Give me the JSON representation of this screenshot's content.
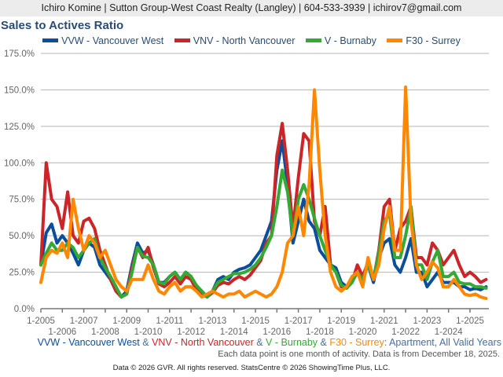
{
  "header": {
    "text": "Ichiro Komine | Sutton Group-West Coast Realty (Langley) | 604-533-3939 | ichirov7@gmail.com"
  },
  "caption": {
    "s1": "VVW - Vancouver West",
    "amp1": " & ",
    "s2": "VNV - North Vancouver",
    "amp2": " & ",
    "s3": "V - Burnaby",
    "amp3": " & ",
    "s4": "F30 - Surrey",
    "rest": ": Apartment, All Valid Years"
  },
  "note": "Each data point is one month of activity. Data is from December 18, 2025.",
  "footer": "Data © 2026 GVR. All rights reserved. StatsCentre © 2026 ShowingTime Plus, LLC.",
  "chart_data": {
    "type": "line",
    "title": "Sales to Actives Ratio",
    "xlabel": "",
    "ylabel": "",
    "ylim": [
      0,
      175
    ],
    "yticks": [
      "0.0%",
      "25.0%",
      "50.0%",
      "75.0%",
      "100.0%",
      "125.0%",
      "150.0%",
      "175.0%"
    ],
    "xticks": [
      "1-2005",
      "1-2006",
      "1-2007",
      "1-2008",
      "1-2009",
      "1-2010",
      "1-2011",
      "1-2012",
      "1-2013",
      "1-2014",
      "1-2015",
      "1-2016",
      "1-2017",
      "1-2018",
      "1-2019",
      "1-2020",
      "1-2021",
      "1-2022",
      "1-2023",
      "1-2024",
      "1-2025"
    ],
    "x_start": "2005-01",
    "x_step_months": 3,
    "grid": true,
    "legend_position": "top-center",
    "series": [
      {
        "name": "VVW - Vancouver West",
        "color": "#0b4f9c",
        "values": [
          30,
          52,
          58,
          45,
          50,
          45,
          38,
          30,
          40,
          45,
          42,
          30,
          25,
          20,
          12,
          8,
          12,
          30,
          45,
          38,
          40,
          30,
          18,
          18,
          22,
          25,
          20,
          25,
          22,
          15,
          12,
          8,
          12,
          20,
          22,
          20,
          25,
          27,
          28,
          30,
          35,
          40,
          50,
          60,
          95,
          115,
          85,
          45,
          60,
          75,
          60,
          55,
          40,
          35,
          30,
          28,
          18,
          15,
          20,
          25,
          22,
          30,
          18,
          35,
          45,
          48,
          30,
          25,
          35,
          48,
          25,
          25,
          15,
          20,
          25,
          18,
          18,
          18,
          15,
          15,
          13,
          14,
          13,
          15
        ]
      },
      {
        "name": "VNV - North Vancouver",
        "color": "#cc2529",
        "values": [
          30,
          100,
          75,
          70,
          55,
          80,
          50,
          45,
          60,
          62,
          55,
          40,
          30,
          20,
          12,
          8,
          10,
          28,
          42,
          35,
          42,
          28,
          17,
          15,
          18,
          22,
          17,
          22,
          20,
          13,
          10,
          8,
          11,
          16,
          18,
          17,
          20,
          22,
          20,
          23,
          28,
          33,
          45,
          50,
          105,
          127,
          95,
          55,
          90,
          120,
          115,
          60,
          50,
          70,
          30,
          25,
          15,
          15,
          18,
          30,
          22,
          32,
          20,
          40,
          70,
          75,
          40,
          55,
          60,
          70,
          35,
          35,
          30,
          45,
          40,
          30,
          35,
          40,
          30,
          22,
          25,
          22,
          18,
          20
        ]
      },
      {
        "name": "V - Burnaby",
        "color": "#33aa33",
        "values": [
          30,
          38,
          45,
          40,
          40,
          45,
          42,
          35,
          40,
          45,
          48,
          35,
          28,
          22,
          15,
          8,
          10,
          25,
          42,
          36,
          35,
          30,
          18,
          17,
          22,
          25,
          20,
          25,
          22,
          16,
          12,
          8,
          12,
          18,
          20,
          22,
          24,
          24,
          25,
          27,
          30,
          35,
          42,
          50,
          70,
          95,
          80,
          50,
          75,
          85,
          75,
          62,
          50,
          40,
          30,
          25,
          16,
          14,
          18,
          25,
          20,
          30,
          20,
          38,
          60,
          65,
          35,
          35,
          50,
          70,
          30,
          30,
          20,
          32,
          40,
          22,
          22,
          25,
          18,
          17,
          17,
          15,
          15,
          14
        ]
      },
      {
        "name": "F30 - Surrey",
        "color": "#ff8800",
        "values": [
          18,
          35,
          40,
          38,
          45,
          35,
          75,
          55,
          40,
          50,
          45,
          35,
          40,
          30,
          20,
          15,
          12,
          20,
          20,
          20,
          30,
          20,
          12,
          10,
          15,
          18,
          12,
          15,
          15,
          12,
          8,
          10,
          12,
          10,
          8,
          10,
          10,
          12,
          8,
          10,
          12,
          10,
          8,
          10,
          15,
          25,
          45,
          50,
          70,
          50,
          85,
          150,
          95,
          50,
          25,
          15,
          12,
          15,
          22,
          25,
          15,
          35,
          20,
          30,
          55,
          70,
          40,
          40,
          152,
          60,
          30,
          20,
          25,
          32,
          28,
          15,
          15,
          20,
          15,
          10,
          9,
          10,
          8,
          7
        ]
      }
    ]
  }
}
